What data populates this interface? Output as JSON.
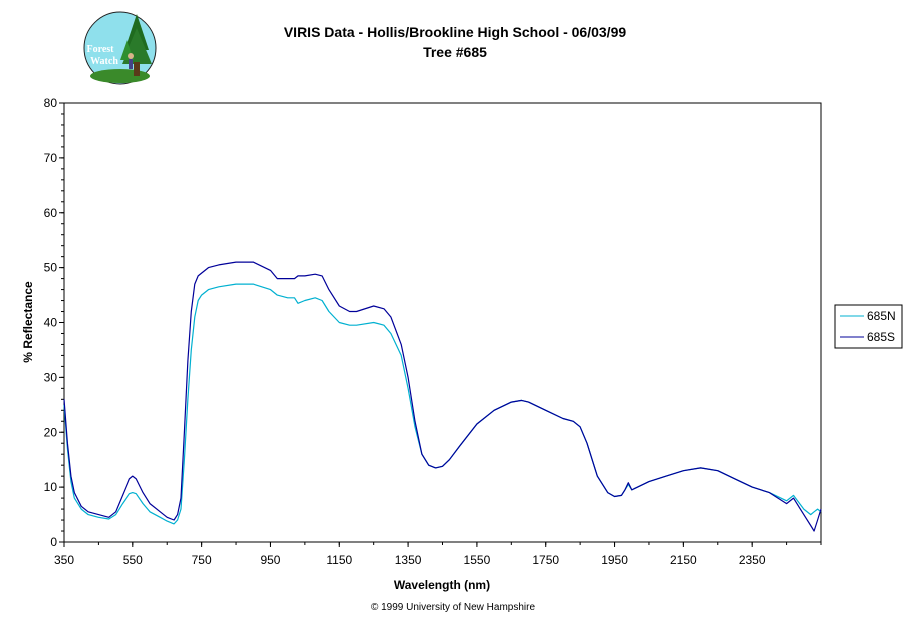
{
  "chart_data": {
    "type": "line",
    "title": "VIRIS Data - Hollis/Brookline High School - 06/03/99",
    "subtitle": "Tree #685",
    "xlabel": "Wavelength (nm)",
    "ylabel": "% Reflectance",
    "xlim": [
      350,
      2550
    ],
    "ylim": [
      0,
      80
    ],
    "x_ticks": [
      350,
      550,
      750,
      950,
      1150,
      1350,
      1550,
      1750,
      1950,
      2150,
      2350
    ],
    "y_ticks": [
      0,
      10,
      20,
      30,
      40,
      50,
      60,
      70,
      80
    ],
    "grid": false,
    "legend_position": "right",
    "series": [
      {
        "name": "685N",
        "color": "#00b0d0",
        "x": [
          350,
          360,
          370,
          380,
          400,
          420,
          450,
          480,
          500,
          520,
          540,
          550,
          560,
          580,
          600,
          630,
          650,
          670,
          680,
          690,
          700,
          710,
          720,
          730,
          740,
          750,
          770,
          800,
          850,
          900,
          950,
          970,
          1000,
          1020,
          1030,
          1050,
          1080,
          1100,
          1120,
          1150,
          1180,
          1200,
          1250,
          1280,
          1300,
          1330,
          1350,
          1370,
          1390,
          1410,
          1430,
          1450,
          1470,
          1500,
          1550,
          1600,
          1650,
          1680,
          1700,
          1750,
          1800,
          1830,
          1850,
          1870,
          1900,
          1930,
          1950,
          1970,
          1980,
          1990,
          2000,
          2010,
          2050,
          2100,
          2150,
          2200,
          2250,
          2300,
          2350,
          2400,
          2450,
          2470,
          2500,
          2520,
          2530,
          2540,
          2550
        ],
        "y": [
          25,
          17,
          11,
          8,
          6,
          5,
          4.5,
          4.2,
          5,
          7,
          8.8,
          9,
          8.8,
          7,
          5.5,
          4.5,
          3.8,
          3.3,
          4,
          6,
          15,
          26,
          35,
          41,
          44,
          45,
          46,
          46.5,
          47,
          47,
          46,
          45,
          44.5,
          44.5,
          43.5,
          44,
          44.5,
          44,
          42,
          40,
          39.5,
          39.5,
          40,
          39.5,
          38,
          34,
          28,
          21,
          16,
          14,
          13.5,
          13.8,
          15,
          17.5,
          21.5,
          24,
          25.5,
          25.8,
          25.5,
          24,
          22.5,
          22,
          21,
          18,
          12,
          9,
          8.3,
          8.5,
          9.5,
          10.5,
          9.5,
          9.8,
          11,
          12,
          13,
          13.5,
          13,
          11.5,
          10,
          9,
          7.5,
          8.5,
          6,
          5,
          5.5,
          6,
          5.5
        ]
      },
      {
        "name": "685S",
        "color": "#000099",
        "x": [
          350,
          360,
          370,
          380,
          400,
          420,
          450,
          480,
          500,
          520,
          540,
          550,
          560,
          580,
          600,
          630,
          650,
          670,
          680,
          690,
          700,
          710,
          720,
          730,
          740,
          750,
          770,
          800,
          850,
          900,
          950,
          970,
          1000,
          1020,
          1030,
          1050,
          1080,
          1100,
          1120,
          1150,
          1180,
          1200,
          1250,
          1280,
          1300,
          1330,
          1350,
          1370,
          1390,
          1410,
          1430,
          1450,
          1470,
          1500,
          1550,
          1600,
          1650,
          1680,
          1700,
          1750,
          1800,
          1830,
          1850,
          1870,
          1900,
          1930,
          1950,
          1970,
          1980,
          1990,
          2000,
          2010,
          2050,
          2100,
          2150,
          2200,
          2250,
          2300,
          2350,
          2400,
          2450,
          2470,
          2500,
          2520,
          2530,
          2540,
          2550
        ],
        "y": [
          26,
          18,
          12,
          9,
          6.5,
          5.5,
          5,
          4.5,
          5.5,
          8.5,
          11.5,
          12,
          11.5,
          9,
          7,
          5.5,
          4.5,
          4,
          5,
          8,
          20,
          33,
          42,
          47,
          48.5,
          49,
          50,
          50.5,
          51,
          51,
          49.5,
          48,
          48,
          48,
          48.5,
          48.5,
          48.8,
          48.5,
          46,
          43,
          42,
          42,
          43,
          42.5,
          41,
          36,
          30,
          22,
          16,
          14,
          13.5,
          13.8,
          15,
          17.5,
          21.5,
          24,
          25.5,
          25.8,
          25.5,
          24,
          22.5,
          22,
          21,
          18,
          12,
          9,
          8.3,
          8.5,
          9.5,
          10.8,
          9.5,
          9.8,
          11,
          12,
          13,
          13.5,
          13,
          11.5,
          10,
          9,
          7,
          8,
          5,
          3,
          2,
          4,
          6
        ]
      }
    ]
  },
  "logo": {
    "line1": "Forest",
    "line2": "Watch"
  },
  "footer": {
    "copyright": "© 1999 University of New Hampshire"
  },
  "colors": {
    "plot_border": "#000000",
    "background": "#ffffff"
  }
}
